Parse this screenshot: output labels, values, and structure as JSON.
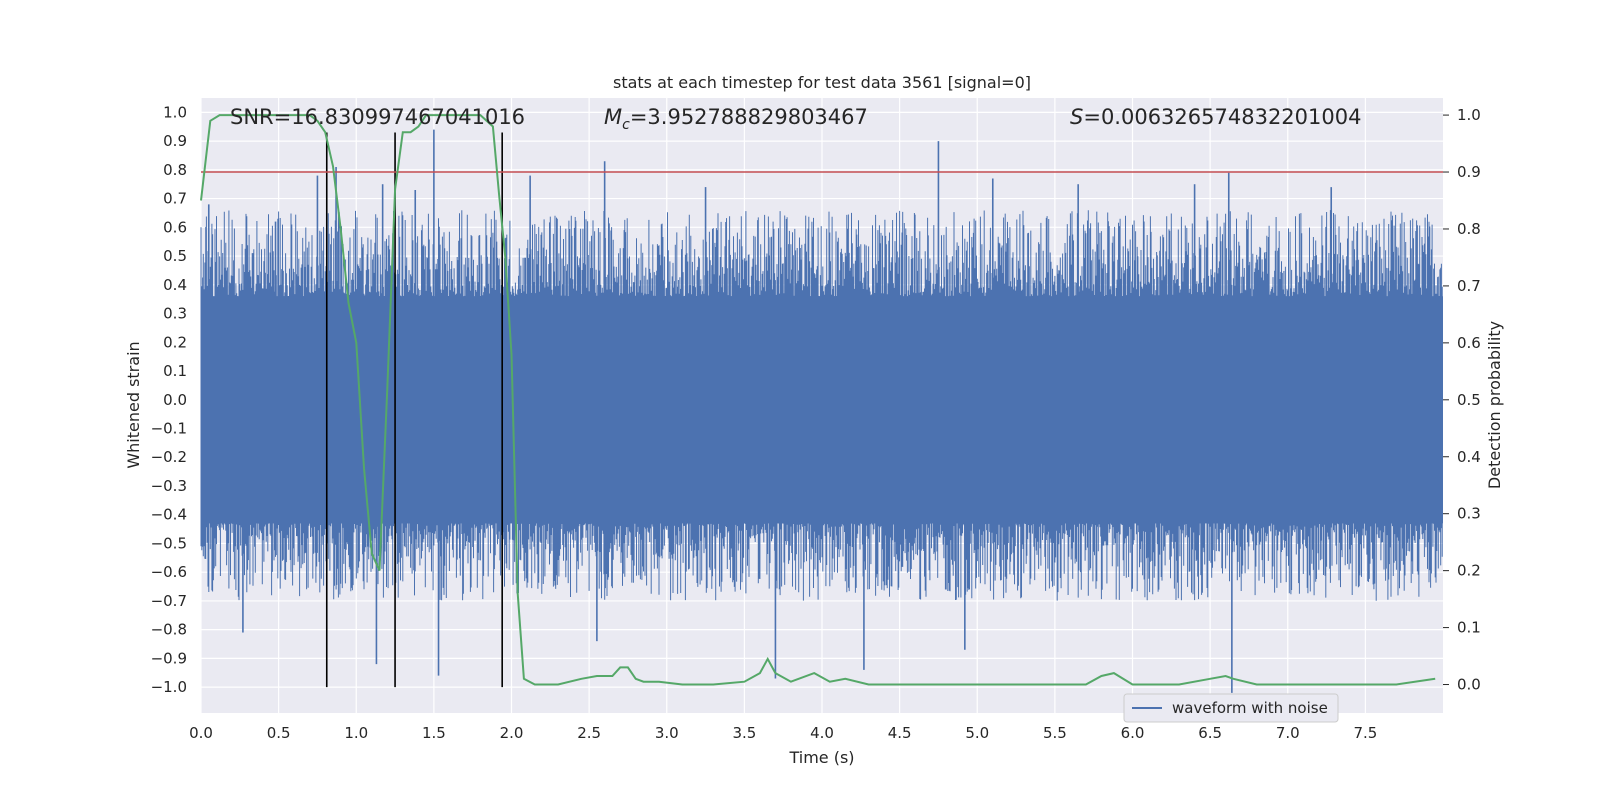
{
  "chart_data": {
    "type": "line",
    "title": "stats at each timestep for test data 3561 [signal=0]",
    "xlabel": "Time (s)",
    "ylabel": "Whitened strain",
    "ylabel_right": "Detection probability",
    "xlim": [
      0.0,
      8.0
    ],
    "ylim": [
      -1.09,
      1.05
    ],
    "ylim_right": [
      -0.05,
      1.03
    ],
    "x_ticks": [
      0.0,
      0.5,
      1.0,
      1.5,
      2.0,
      2.5,
      3.0,
      3.5,
      4.0,
      4.5,
      5.0,
      5.5,
      6.0,
      6.5,
      7.0,
      7.5
    ],
    "x_tick_labels": [
      "0.0",
      "0.5",
      "1.0",
      "1.5",
      "2.0",
      "2.5",
      "3.0",
      "3.5",
      "4.0",
      "4.5",
      "5.0",
      "5.5",
      "6.0",
      "6.5",
      "7.0",
      "7.5"
    ],
    "y_ticks": [
      1.0,
      0.9,
      0.8,
      0.7,
      0.6,
      0.5,
      0.4,
      0.3,
      0.2,
      0.1,
      0.0,
      -0.1,
      -0.2,
      -0.3,
      -0.4,
      -0.5,
      -0.6,
      -0.7,
      -0.8,
      -0.9,
      -1.0
    ],
    "y_tick_labels": [
      "1.0",
      "0.9",
      "0.8",
      "0.7",
      "0.6",
      "0.5",
      "0.4",
      "0.3",
      "0.2",
      "0.1",
      "0.0",
      "−0.1",
      "−0.2",
      "−0.3",
      "−0.4",
      "−0.5",
      "−0.6",
      "−0.7",
      "−0.8",
      "−0.9",
      "−1.0"
    ],
    "y2_ticks": [
      1.0,
      0.9,
      0.8,
      0.7,
      0.6,
      0.5,
      0.4,
      0.3,
      0.2,
      0.1,
      0.0
    ],
    "y2_tick_labels": [
      "1.0",
      "0.9",
      "0.8",
      "0.7",
      "0.6",
      "0.5",
      "0.4",
      "0.3",
      "0.2",
      "0.1",
      "0.0"
    ],
    "grid": true,
    "legend": {
      "position": "lower-right",
      "entries": [
        {
          "label": "waveform with noise",
          "color": "#4c72b0"
        }
      ]
    },
    "annotations": {
      "snr": {
        "text": "SNR=16.830997467041016"
      },
      "mc": {
        "symbol": "M",
        "subscript": "c",
        "value_text": "=3.952788829803467"
      },
      "s": {
        "symbol": "S",
        "value_text": "=0.006326574832201004"
      }
    },
    "series": [
      {
        "name": "waveform with noise",
        "axis": "left",
        "color": "#4c72b0",
        "kind": "noise-band",
        "core_band": [
          -0.43,
          0.36
        ],
        "envelope_typical": [
          -0.62,
          0.58
        ],
        "spikes": [
          {
            "x": 0.05,
            "y": 0.68
          },
          {
            "x": 0.27,
            "y": -0.81
          },
          {
            "x": 0.48,
            "y": 0.62
          },
          {
            "x": 0.75,
            "y": 0.78
          },
          {
            "x": 0.87,
            "y": 0.81
          },
          {
            "x": 1.13,
            "y": -0.92
          },
          {
            "x": 1.17,
            "y": 0.75
          },
          {
            "x": 1.38,
            "y": 0.73
          },
          {
            "x": 1.5,
            "y": 0.94
          },
          {
            "x": 1.53,
            "y": -0.96
          },
          {
            "x": 2.12,
            "y": 0.78
          },
          {
            "x": 2.55,
            "y": -0.84
          },
          {
            "x": 2.6,
            "y": 0.83
          },
          {
            "x": 3.7,
            "y": -0.97
          },
          {
            "x": 4.27,
            "y": -0.94
          },
          {
            "x": 4.75,
            "y": 0.9
          },
          {
            "x": 5.1,
            "y": 0.77
          },
          {
            "x": 6.4,
            "y": 0.75
          },
          {
            "x": 6.62,
            "y": 0.79
          },
          {
            "x": 6.64,
            "y": -1.02
          },
          {
            "x": 4.92,
            "y": -0.87
          },
          {
            "x": 3.25,
            "y": 0.74
          },
          {
            "x": 5.65,
            "y": 0.75
          },
          {
            "x": 7.28,
            "y": 0.74
          }
        ]
      },
      {
        "name": "detection probability",
        "axis": "right",
        "color": "#55a868",
        "kind": "line",
        "x": [
          0.0,
          0.06,
          0.12,
          0.3,
          0.5,
          0.7,
          0.75,
          0.8,
          0.85,
          0.9,
          0.95,
          1.0,
          1.05,
          1.1,
          1.15,
          1.2,
          1.25,
          1.3,
          1.35,
          1.4,
          1.45,
          1.5,
          1.6,
          1.7,
          1.8,
          1.88,
          1.92,
          1.96,
          2.0,
          2.04,
          2.08,
          2.15,
          2.2,
          2.3,
          2.45,
          2.55,
          2.65,
          2.7,
          2.75,
          2.8,
          2.85,
          2.95,
          3.1,
          3.3,
          3.5,
          3.6,
          3.65,
          3.7,
          3.8,
          3.95,
          4.05,
          4.15,
          4.3,
          4.5,
          4.8,
          5.0,
          5.3,
          5.5,
          5.7,
          5.8,
          5.88,
          6.0,
          6.3,
          6.5,
          6.6,
          6.65,
          6.8,
          7.1,
          7.5,
          7.7,
          7.95
        ],
        "y": [
          0.85,
          0.99,
          1.0,
          1.0,
          1.0,
          1.0,
          0.99,
          0.97,
          0.91,
          0.8,
          0.67,
          0.6,
          0.38,
          0.23,
          0.2,
          0.52,
          0.87,
          0.97,
          0.97,
          0.98,
          1.0,
          1.0,
          1.0,
          1.0,
          1.0,
          0.98,
          0.86,
          0.75,
          0.58,
          0.16,
          0.01,
          0.0,
          0.0,
          0.0,
          0.01,
          0.015,
          0.015,
          0.03,
          0.03,
          0.01,
          0.005,
          0.005,
          0.0,
          0.0,
          0.005,
          0.02,
          0.045,
          0.02,
          0.005,
          0.02,
          0.005,
          0.01,
          0.0,
          0.0,
          0.0,
          0.0,
          0.0,
          0.0,
          0.0,
          0.015,
          0.02,
          0.0,
          0.0,
          0.01,
          0.015,
          0.01,
          0.0,
          0.0,
          0.0,
          0.0,
          0.01
        ]
      },
      {
        "name": "threshold",
        "axis": "right",
        "color": "#c44e52",
        "kind": "hline",
        "y": 0.9
      }
    ],
    "vlines": [
      {
        "x": 0.81,
        "y_from": -1.0,
        "y_to": 0.93
      },
      {
        "x": 1.25,
        "y_from": -1.0,
        "y_to": 0.93
      },
      {
        "x": 1.94,
        "y_from": -1.0,
        "y_to": 0.93
      }
    ]
  }
}
